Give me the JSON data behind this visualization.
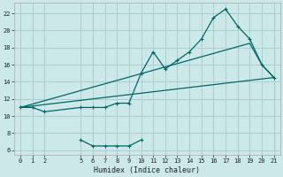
{
  "xlabel": "Humidex (Indice chaleur)",
  "bg_color": "#cce8e8",
  "grid_color": "#aacece",
  "line_color": "#006868",
  "xlim": [
    -0.5,
    21.5
  ],
  "ylim": [
    5.5,
    23.2
  ],
  "xticks": [
    0,
    1,
    2,
    5,
    6,
    7,
    8,
    9,
    10,
    11,
    12,
    13,
    14,
    15,
    16,
    17,
    18,
    19,
    20,
    21
  ],
  "yticks": [
    6,
    8,
    10,
    12,
    14,
    16,
    18,
    20,
    22
  ],
  "line1_x": [
    0,
    1,
    2,
    5,
    6,
    7,
    8,
    9,
    10,
    11,
    12,
    13,
    14,
    15,
    16,
    17,
    18,
    19,
    20,
    21
  ],
  "line1_y": [
    11,
    11,
    10.5,
    11,
    11,
    11,
    11.5,
    11.5,
    15,
    17.5,
    15.5,
    16.5,
    17.5,
    19.0,
    21.5,
    22.5,
    20.5,
    19.0,
    16.0,
    14.5
  ],
  "line2_x": [
    0,
    19,
    20,
    21
  ],
  "line2_y": [
    11,
    18.5,
    16.0,
    14.5
  ],
  "line3_x": [
    0,
    21
  ],
  "line3_y": [
    11,
    14.5
  ],
  "line4_x": [
    5,
    6,
    7,
    8,
    9,
    10
  ],
  "line4_y": [
    7.2,
    6.5,
    6.5,
    6.5,
    6.5,
    7.2
  ]
}
